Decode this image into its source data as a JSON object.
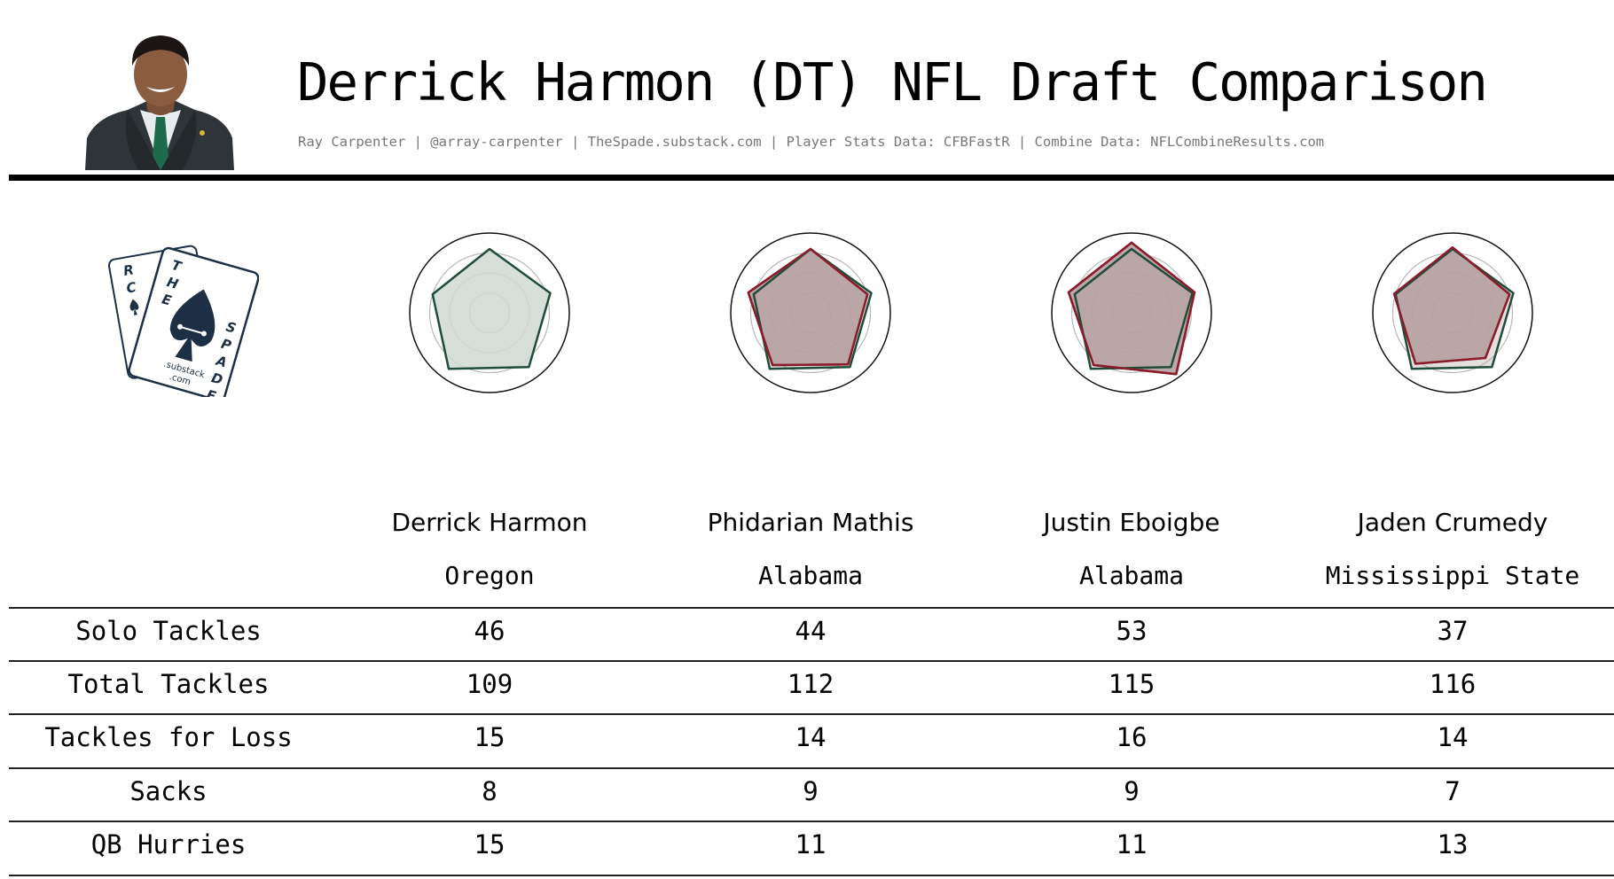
{
  "header": {
    "title": "Derrick Harmon (DT) NFL Draft Comparison",
    "subtitle": "Ray Carpenter | @array-carpenter | TheSpade.substack.com | Player Stats Data: CFBFastR | Combine Data: NFLCombineResults.com"
  },
  "logo": {
    "text": [
      "R",
      "C",
      "T",
      "H",
      "E",
      "S",
      "P",
      "A",
      "D",
      "E",
      ".substack",
      ".com"
    ],
    "color": "#1c2f45"
  },
  "colors": {
    "primary": "#1f4d3a",
    "primary_fill": "#cfd9d4",
    "comparison": "#8b1c2c",
    "comparison_fill": "#b79da1",
    "overlap_fill": "#b5a7a4"
  },
  "players": [
    {
      "name": "Derrick Harmon",
      "school": "Oregon"
    },
    {
      "name": "Phidarian Mathis",
      "school": "Alabama"
    },
    {
      "name": "Justin Eboigbe",
      "school": "Alabama"
    },
    {
      "name": "Jaden Crumedy",
      "school": "Mississippi State"
    }
  ],
  "table": {
    "rows": [
      {
        "label": "Solo Tackles",
        "values": [
          "46",
          "44",
          "53",
          "37"
        ]
      },
      {
        "label": "Total Tackles",
        "values": [
          "109",
          "112",
          "115",
          "116"
        ]
      },
      {
        "label": "Tackles for Loss",
        "values": [
          "15",
          "14",
          "16",
          "14"
        ]
      },
      {
        "label": "Sacks",
        "values": [
          "8",
          "9",
          "9",
          "7"
        ]
      },
      {
        "label": "QB Hurries",
        "values": [
          "15",
          "11",
          "11",
          "13"
        ]
      }
    ]
  },
  "chart_data": {
    "type": "radar",
    "axes_count": 5,
    "rmax": 1.0,
    "grid": true,
    "charts": [
      {
        "overlay": null
      },
      {
        "overlay": [
          0.8,
          0.75,
          0.8,
          0.81,
          0.82
        ]
      },
      {
        "overlay": [
          0.88,
          0.83,
          0.95,
          0.81,
          0.83
        ]
      },
      {
        "overlay": [
          0.82,
          0.75,
          0.7,
          0.79,
          0.77
        ]
      }
    ],
    "primary": [
      0.8,
      0.8,
      0.84,
      0.87,
      0.75
    ]
  }
}
